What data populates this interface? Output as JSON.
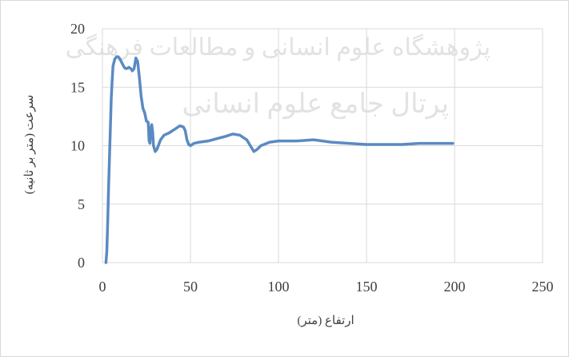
{
  "chart_data": {
    "type": "line",
    "title": "",
    "xlabel": "ارتفاع (متر)",
    "ylabel": "سرعت (متر بر ثانیه)",
    "xlim": [
      0,
      250
    ],
    "ylim": [
      0,
      20
    ],
    "x_ticks": [
      "0",
      "50",
      "100",
      "150",
      "200",
      "250"
    ],
    "y_ticks": [
      "0",
      "5",
      "10",
      "15",
      "20"
    ],
    "grid": true,
    "legend": "none",
    "line_color": "#5b8ac2",
    "series": [
      {
        "x": [
          2,
          2.5,
          3,
          3.5,
          4,
          4.5,
          5,
          5.5,
          6,
          7,
          8,
          9,
          10,
          11,
          12,
          13,
          14,
          15,
          16,
          17,
          18,
          19,
          20,
          21,
          22,
          23,
          24,
          25,
          26,
          26.5,
          27,
          27.5,
          28,
          28.5,
          29,
          30,
          31,
          33,
          35,
          38,
          40,
          42,
          44,
          46,
          47,
          48,
          49,
          50,
          52,
          55,
          60,
          65,
          70,
          74,
          78,
          82,
          84,
          86,
          88,
          90,
          95,
          100,
          110,
          120,
          130,
          140,
          150,
          160,
          170,
          180,
          190,
          199
        ],
        "values": [
          0,
          1,
          3.5,
          6.5,
          9,
          11.5,
          14,
          15.5,
          16.8,
          17.4,
          17.6,
          17.6,
          17.4,
          17.1,
          16.8,
          16.6,
          16.6,
          16.7,
          16.6,
          16.4,
          16.6,
          17.5,
          17.2,
          15.8,
          14.2,
          13.2,
          12.8,
          12.1,
          12.0,
          10.4,
          10.2,
          11.5,
          11.8,
          11.2,
          10.0,
          9.5,
          9.7,
          10.5,
          10.9,
          11.1,
          11.3,
          11.5,
          11.7,
          11.6,
          11.3,
          10.5,
          10.1,
          10.0,
          10.2,
          10.3,
          10.4,
          10.6,
          10.8,
          11.0,
          10.9,
          10.5,
          10.0,
          9.5,
          9.7,
          10.0,
          10.3,
          10.4,
          10.4,
          10.5,
          10.3,
          10.2,
          10.1,
          10.1,
          10.1,
          10.2,
          10.2,
          10.2
        ]
      }
    ]
  },
  "watermark": {
    "line1": "پژوهشگاه علوم انسانی و مطالعات فرهنگی",
    "line2": "پرتال جامع علوم انسانی"
  }
}
